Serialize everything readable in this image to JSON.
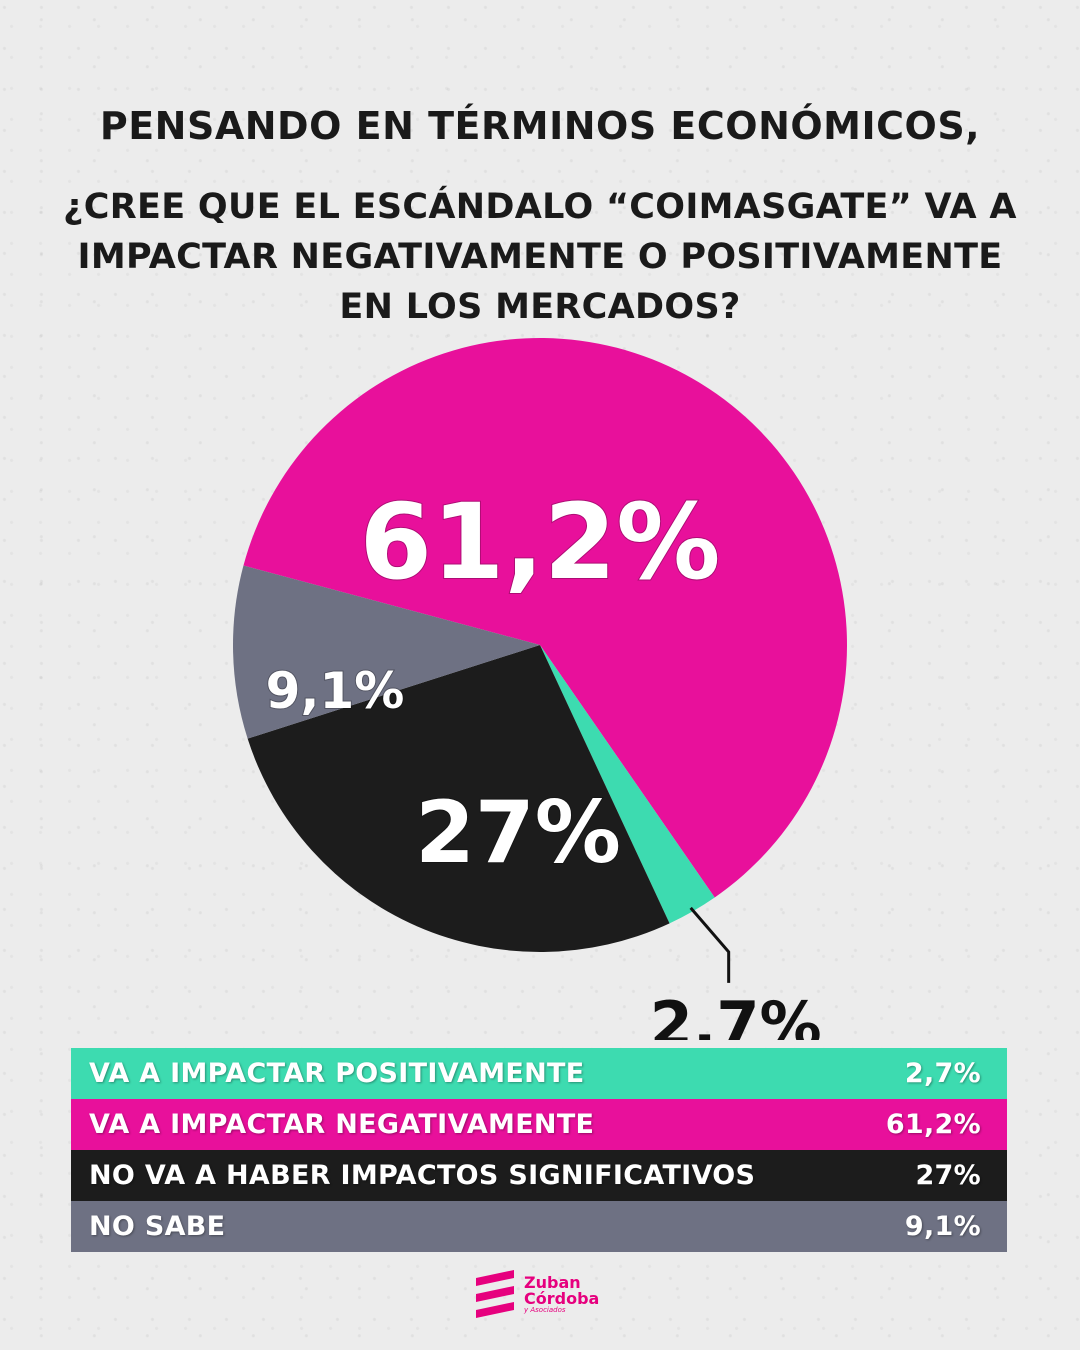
{
  "question": {
    "line1": "PENSANDO EN TÉRMINOS ECONÓMICOS,",
    "line2": "¿CREE QUE EL ESCÁNDALO “COIMASGATE” VA A",
    "line3": "IMPACTAR NEGATIVAMENTE O POSITIVAMENTE",
    "line4": "EN LOS MERCADOS?"
  },
  "chart_data": {
    "type": "pie",
    "slices": [
      {
        "label": "VA A IMPACTAR NEGATIVAMENTE",
        "value": 61.2,
        "display": "61,2%",
        "color": "#e8109b",
        "text_color": "#ffffff"
      },
      {
        "label": "VA A IMPACTAR POSITIVAMENTE",
        "value": 2.7,
        "display": "2,7%",
        "color": "#3ddbb0",
        "text_color": "#ffffff"
      },
      {
        "label": "NO VA A HABER IMPACTOS SIGNIFICATIVOS",
        "value": 27,
        "display": "27%",
        "color": "#1c1c1c",
        "text_color": "#ffffff"
      },
      {
        "label": "NO SABE",
        "value": 9.1,
        "display": "9,1%",
        "color": "#6e7183",
        "text_color": "#ffffff"
      }
    ],
    "start_direction": "left of center, slightly below horizontal",
    "order": "clockwise",
    "external_label_slice": "VA A IMPACTAR POSITIVAMENTE"
  },
  "legend": {
    "rows": [
      {
        "label": "VA A IMPACTAR POSITIVAMENTE",
        "value": "2,7%",
        "color": "#3ddbb0"
      },
      {
        "label": "VA A IMPACTAR NEGATIVAMENTE",
        "value": "61,2%",
        "color": "#e8109b"
      },
      {
        "label": "NO VA A HABER IMPACTOS SIGNIFICATIVOS",
        "value": "27%",
        "color": "#1c1c1c"
      },
      {
        "label": "NO SABE",
        "value": "9,1%",
        "color": "#6e7183"
      }
    ]
  },
  "brand": {
    "line1": "Zuban",
    "line2": "Córdoba",
    "line3": "y Asociados",
    "color": "#e6007e"
  }
}
